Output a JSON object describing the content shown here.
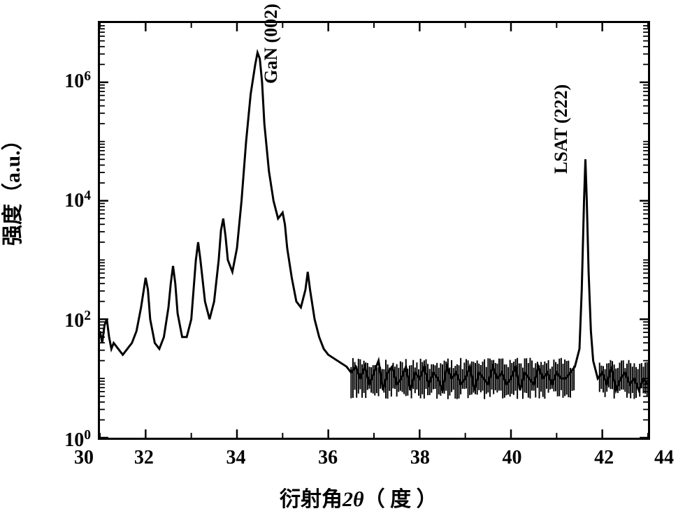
{
  "chart": {
    "type": "line",
    "xlabel": "衍射角 2θ（ 度 ）",
    "ylabel": "强度（a.u.）",
    "xlabel_fontsize": 30,
    "ylabel_fontsize": 30,
    "tick_fontsize": 28,
    "peak_label_fontsize": 26,
    "xlim": [
      31,
      43
    ],
    "ylim": [
      1,
      10000000
    ],
    "yscale": "log",
    "xticks": [
      30,
      32,
      34,
      36,
      38,
      40,
      42,
      44
    ],
    "yticks_exp": [
      0,
      2,
      4,
      6
    ],
    "ytick_labels": [
      "10⁰",
      "10²",
      "10⁴",
      "10⁶"
    ],
    "line_color": "#000000",
    "line_width": 3,
    "background_color": "#ffffff",
    "border_color": "#000000",
    "border_width": 3,
    "peak_labels": [
      {
        "text": "GaN (002)",
        "x": 35.0,
        "y_exp": 6.3
      },
      {
        "text": "LSAT (222)",
        "x": 41.3,
        "y_exp": 4.8
      }
    ],
    "data_points": [
      [
        31.0,
        1.8
      ],
      [
        31.05,
        1.6
      ],
      [
        31.1,
        1.9
      ],
      [
        31.15,
        2.0
      ],
      [
        31.2,
        1.7
      ],
      [
        31.25,
        1.5
      ],
      [
        31.3,
        1.6
      ],
      [
        31.4,
        1.5
      ],
      [
        31.5,
        1.4
      ],
      [
        31.6,
        1.5
      ],
      [
        31.7,
        1.6
      ],
      [
        31.8,
        1.8
      ],
      [
        31.9,
        2.2
      ],
      [
        32.0,
        2.7
      ],
      [
        32.05,
        2.5
      ],
      [
        32.1,
        2.0
      ],
      [
        32.2,
        1.6
      ],
      [
        32.3,
        1.5
      ],
      [
        32.4,
        1.7
      ],
      [
        32.5,
        2.2
      ],
      [
        32.55,
        2.6
      ],
      [
        32.6,
        2.9
      ],
      [
        32.65,
        2.6
      ],
      [
        32.7,
        2.1
      ],
      [
        32.8,
        1.7
      ],
      [
        32.9,
        1.7
      ],
      [
        33.0,
        2.0
      ],
      [
        33.05,
        2.5
      ],
      [
        33.1,
        3.0
      ],
      [
        33.15,
        3.3
      ],
      [
        33.2,
        3.0
      ],
      [
        33.3,
        2.3
      ],
      [
        33.4,
        2.0
      ],
      [
        33.5,
        2.3
      ],
      [
        33.6,
        3.0
      ],
      [
        33.65,
        3.5
      ],
      [
        33.7,
        3.7
      ],
      [
        33.75,
        3.4
      ],
      [
        33.8,
        3.0
      ],
      [
        33.9,
        2.8
      ],
      [
        34.0,
        3.2
      ],
      [
        34.1,
        4.0
      ],
      [
        34.2,
        5.0
      ],
      [
        34.3,
        5.8
      ],
      [
        34.4,
        6.3
      ],
      [
        34.45,
        6.5
      ],
      [
        34.5,
        6.4
      ],
      [
        34.55,
        6.0
      ],
      [
        34.6,
        5.3
      ],
      [
        34.7,
        4.5
      ],
      [
        34.8,
        4.0
      ],
      [
        34.9,
        3.7
      ],
      [
        35.0,
        3.8
      ],
      [
        35.05,
        3.6
      ],
      [
        35.1,
        3.2
      ],
      [
        35.2,
        2.7
      ],
      [
        35.3,
        2.3
      ],
      [
        35.4,
        2.2
      ],
      [
        35.5,
        2.5
      ],
      [
        35.55,
        2.8
      ],
      [
        35.6,
        2.5
      ],
      [
        35.7,
        2.0
      ],
      [
        35.8,
        1.7
      ],
      [
        35.9,
        1.5
      ],
      [
        36.0,
        1.4
      ],
      [
        36.2,
        1.3
      ],
      [
        36.4,
        1.2
      ],
      [
        36.5,
        1.1
      ],
      [
        36.6,
        1.2
      ],
      [
        36.7,
        1.0
      ],
      [
        36.8,
        1.2
      ],
      [
        36.9,
        0.9
      ],
      [
        37.0,
        1.1
      ],
      [
        37.1,
        1.3
      ],
      [
        37.2,
        0.8
      ],
      [
        37.3,
        1.1
      ],
      [
        37.4,
        1.2
      ],
      [
        37.5,
        0.9
      ],
      [
        37.6,
        1.0
      ],
      [
        37.7,
        1.2
      ],
      [
        37.8,
        0.8
      ],
      [
        37.9,
        1.1
      ],
      [
        38.0,
        1.0
      ],
      [
        38.1,
        1.2
      ],
      [
        38.2,
        0.9
      ],
      [
        38.3,
        1.1
      ],
      [
        38.4,
        1.0
      ],
      [
        38.5,
        0.8
      ],
      [
        38.6,
        1.2
      ],
      [
        38.7,
        1.0
      ],
      [
        38.8,
        1.1
      ],
      [
        38.9,
        0.9
      ],
      [
        39.0,
        1.0
      ],
      [
        39.1,
        1.2
      ],
      [
        39.2,
        0.8
      ],
      [
        39.3,
        1.1
      ],
      [
        39.4,
        1.0
      ],
      [
        39.5,
        0.9
      ],
      [
        39.6,
        1.2
      ],
      [
        39.7,
        1.0
      ],
      [
        39.8,
        1.1
      ],
      [
        39.9,
        0.9
      ],
      [
        40.0,
        1.0
      ],
      [
        40.1,
        1.2
      ],
      [
        40.2,
        0.8
      ],
      [
        40.3,
        1.1
      ],
      [
        40.4,
        1.0
      ],
      [
        40.5,
        0.9
      ],
      [
        40.6,
        1.2
      ],
      [
        40.7,
        1.0
      ],
      [
        40.8,
        1.1
      ],
      [
        40.9,
        0.9
      ],
      [
        41.0,
        1.1
      ],
      [
        41.1,
        1.0
      ],
      [
        41.2,
        1.0
      ],
      [
        41.3,
        1.1
      ],
      [
        41.4,
        1.2
      ],
      [
        41.5,
        1.5
      ],
      [
        41.55,
        2.5
      ],
      [
        41.6,
        4.0
      ],
      [
        41.63,
        4.7
      ],
      [
        41.66,
        4.0
      ],
      [
        41.7,
        2.8
      ],
      [
        41.75,
        1.8
      ],
      [
        41.8,
        1.3
      ],
      [
        41.9,
        1.0
      ],
      [
        42.0,
        1.1
      ],
      [
        42.1,
        0.9
      ],
      [
        42.2,
        1.2
      ],
      [
        42.3,
        0.8
      ],
      [
        42.4,
        1.0
      ],
      [
        42.5,
        1.1
      ],
      [
        42.6,
        0.9
      ],
      [
        42.7,
        1.0
      ],
      [
        42.8,
        0.8
      ],
      [
        42.9,
        1.0
      ],
      [
        43.0,
        0.9
      ]
    ]
  }
}
